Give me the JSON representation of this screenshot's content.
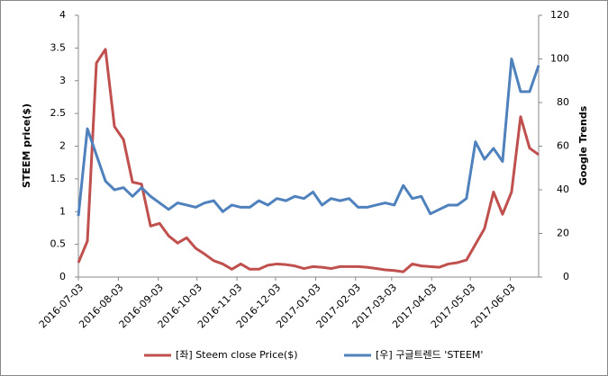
{
  "chart_data": {
    "type": "line",
    "x": [
      "2016-07-03",
      "2016-07-10",
      "2016-07-17",
      "2016-07-24",
      "2016-07-31",
      "2016-08-07",
      "2016-08-14",
      "2016-08-21",
      "2016-08-28",
      "2016-09-04",
      "2016-09-11",
      "2016-09-18",
      "2016-09-25",
      "2016-10-02",
      "2016-10-09",
      "2016-10-16",
      "2016-10-23",
      "2016-10-30",
      "2016-11-06",
      "2016-11-13",
      "2016-11-20",
      "2016-11-27",
      "2016-12-04",
      "2016-12-11",
      "2016-12-18",
      "2016-12-25",
      "2017-01-01",
      "2017-01-08",
      "2017-01-15",
      "2017-01-22",
      "2017-01-29",
      "2017-02-05",
      "2017-02-12",
      "2017-02-19",
      "2017-02-26",
      "2017-03-05",
      "2017-03-12",
      "2017-03-19",
      "2017-03-26",
      "2017-04-02",
      "2017-04-09",
      "2017-04-16",
      "2017-04-23",
      "2017-04-30",
      "2017-05-07",
      "2017-05-14",
      "2017-05-21",
      "2017-05-28",
      "2017-06-04",
      "2017-06-11",
      "2017-06-18",
      "2017-06-25"
    ],
    "series": [
      {
        "name": "[좌] Steem close Price($)",
        "color": "#c0504d",
        "values": [
          0.22,
          0.55,
          3.27,
          3.48,
          2.3,
          2.1,
          1.45,
          1.42,
          0.78,
          0.82,
          0.63,
          0.52,
          0.6,
          0.44,
          0.35,
          0.25,
          0.2,
          0.12,
          0.2,
          0.12,
          0.12,
          0.18,
          0.2,
          0.19,
          0.17,
          0.13,
          0.16,
          0.15,
          0.13,
          0.16,
          0.16,
          0.16,
          0.15,
          0.13,
          0.11,
          0.1,
          0.08,
          0.2,
          0.17,
          0.16,
          0.15,
          0.2,
          0.22,
          0.26,
          0.5,
          0.74,
          1.3,
          0.96,
          1.3,
          2.45,
          1.97,
          1.87
        ]
      },
      {
        "name": "[우] 구글트렌드 'STEEM'",
        "color": "#4f81bd",
        "axis": "y2",
        "values": [
          28,
          68,
          56,
          44,
          40,
          41,
          37,
          41,
          37,
          34,
          31,
          34,
          33,
          32,
          34,
          35,
          30,
          33,
          32,
          32,
          35,
          33,
          36,
          35,
          37,
          36,
          39,
          33,
          36,
          35,
          36,
          32,
          32,
          33,
          34,
          33,
          42,
          36,
          37,
          29,
          31,
          33,
          33,
          36,
          62,
          54,
          59,
          53,
          100,
          85,
          85,
          97
        ]
      }
    ],
    "xlim": [
      "2016-07-03",
      "2017-06-25"
    ],
    "xticks": [
      "2016-07-03",
      "2016-08-03",
      "2016-09-03",
      "2016-10-03",
      "2016-11-03",
      "2016-12-03",
      "2017-01-03",
      "2017-02-03",
      "2017-03-03",
      "2017-04-03",
      "2017-05-03",
      "2017-06-03"
    ],
    "ylabel": "STEEM  price($)",
    "y2label": "Google Trends",
    "ylim": [
      0,
      4
    ],
    "yticks": [
      0,
      0.5,
      1,
      1.5,
      2,
      2.5,
      3,
      3.5,
      4
    ],
    "y2lim": [
      0,
      120
    ],
    "y2ticks": [
      0,
      20,
      40,
      60,
      80,
      100,
      120
    ],
    "legend": "bottom"
  }
}
